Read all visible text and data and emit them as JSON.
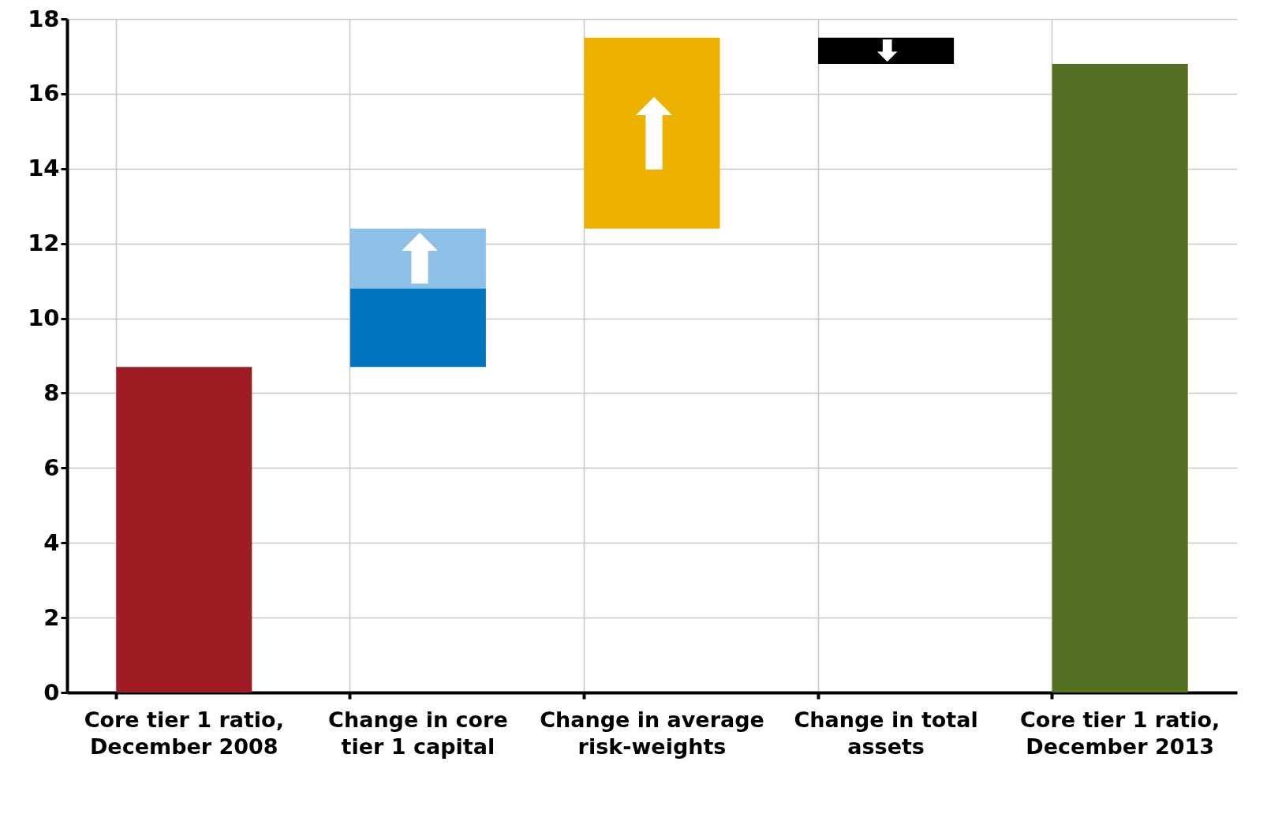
{
  "chart_data": {
    "type": "bar",
    "categories": [
      "Core tier 1 ratio, December 2008",
      "Change in core tier 1 capital",
      "Change in average risk-weights",
      "Change in total assets",
      "Core tier 1 ratio, December 2013"
    ],
    "series": [
      {
        "colors": [
          "#a01c24",
          "#0075be",
          "#edb100",
          "#000000",
          "#547123"
        ],
        "base": [
          0,
          8.7,
          12.4,
          17.5,
          0
        ],
        "values": [
          8.7,
          2.1,
          5.1,
          -0.7,
          16.8
        ]
      },
      {
        "color": "#8cc0e6",
        "base": [
          null,
          10.8,
          null,
          null,
          null
        ],
        "values": [
          null,
          1.6,
          null,
          null,
          null
        ]
      }
    ],
    "ylim": [
      0,
      18
    ],
    "yticks": [
      0,
      2,
      4,
      6,
      8,
      10,
      12,
      14,
      16,
      18
    ],
    "grid": true
  }
}
